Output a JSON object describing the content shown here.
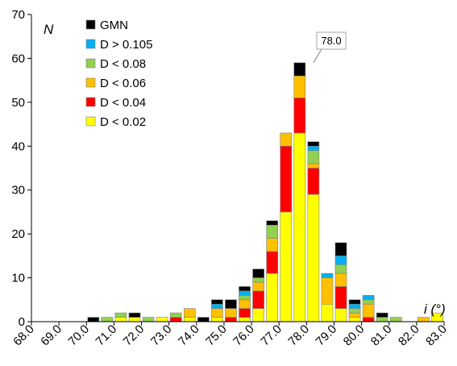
{
  "chart_data": {
    "type": "bar",
    "stacked": true,
    "title": "",
    "ylabel": "N",
    "xlabel": "i (°)",
    "ylim": [
      0,
      70
    ],
    "yticks": [
      0,
      10,
      20,
      30,
      40,
      50,
      60,
      70
    ],
    "xlim": [
      68.0,
      83.0
    ],
    "xticks": [
      "68.0",
      "69.0",
      "70.0",
      "71.0",
      "72.0",
      "73.0",
      "74.0",
      "75.0",
      "76.0",
      "77.0",
      "78.0",
      "79.0",
      "80.0",
      "81.0",
      "82.0",
      "83.0"
    ],
    "bin_width": 0.5,
    "bin_starts": [
      70.0,
      70.5,
      71.0,
      71.5,
      72.0,
      72.5,
      73.0,
      73.5,
      74.0,
      74.5,
      75.0,
      75.5,
      76.0,
      76.5,
      77.0,
      77.5,
      78.0,
      78.5,
      79.0,
      79.5,
      80.0,
      80.5,
      81.0,
      81.5,
      82.0,
      82.5
    ],
    "legend_position": "top-left",
    "grid": false,
    "annotation": {
      "text": "78.0",
      "x": 78.0,
      "y": 59
    },
    "series": [
      {
        "name": "D < 0.02",
        "color": "#FFFF00",
        "values": [
          0,
          0,
          1,
          1,
          0,
          1,
          0,
          1,
          0,
          1,
          0,
          1,
          3,
          11,
          25,
          43,
          29,
          4,
          3,
          1,
          0,
          0,
          0,
          0,
          0,
          2
        ]
      },
      {
        "name": "D < 0.04",
        "color": "#FF0000",
        "values": [
          0,
          0,
          0,
          0,
          0,
          0,
          1,
          0,
          0,
          0,
          1,
          2,
          4,
          5,
          15,
          8,
          6,
          0,
          5,
          0,
          1,
          0,
          0,
          0,
          0,
          0
        ]
      },
      {
        "name": "D < 0.06",
        "color": "#FFC000",
        "values": [
          0,
          0,
          0,
          0,
          0,
          0,
          0,
          2,
          0,
          2,
          2,
          2,
          2,
          3,
          3,
          5,
          1,
          6,
          3,
          1,
          3,
          0,
          0,
          0,
          1,
          0
        ]
      },
      {
        "name": "D < 0.08",
        "color": "#92D050",
        "values": [
          0,
          1,
          1,
          0,
          1,
          0,
          1,
          0,
          0,
          0,
          0,
          1,
          1,
          3,
          0,
          0,
          3,
          0,
          2,
          1,
          1,
          1,
          1,
          0,
          0,
          0
        ]
      },
      {
        "name": "D > 0.105",
        "color": "#00B0F0",
        "values": [
          0,
          0,
          0,
          0,
          0,
          0,
          0,
          0,
          0,
          1,
          0,
          1,
          0,
          0,
          0,
          0,
          1,
          1,
          2,
          1,
          1,
          0,
          0,
          0,
          0,
          0
        ]
      },
      {
        "name": "GMN",
        "color": "#000000",
        "values": [
          1,
          0,
          0,
          1,
          0,
          0,
          0,
          0,
          1,
          1,
          2,
          1,
          2,
          1,
          0,
          3,
          1,
          0,
          3,
          1,
          0,
          1,
          0,
          0,
          0,
          0
        ]
      }
    ],
    "legend": [
      "GMN",
      "D > 0.105",
      "D < 0.08",
      "D < 0.06",
      "D < 0.04",
      "D < 0.02"
    ]
  }
}
